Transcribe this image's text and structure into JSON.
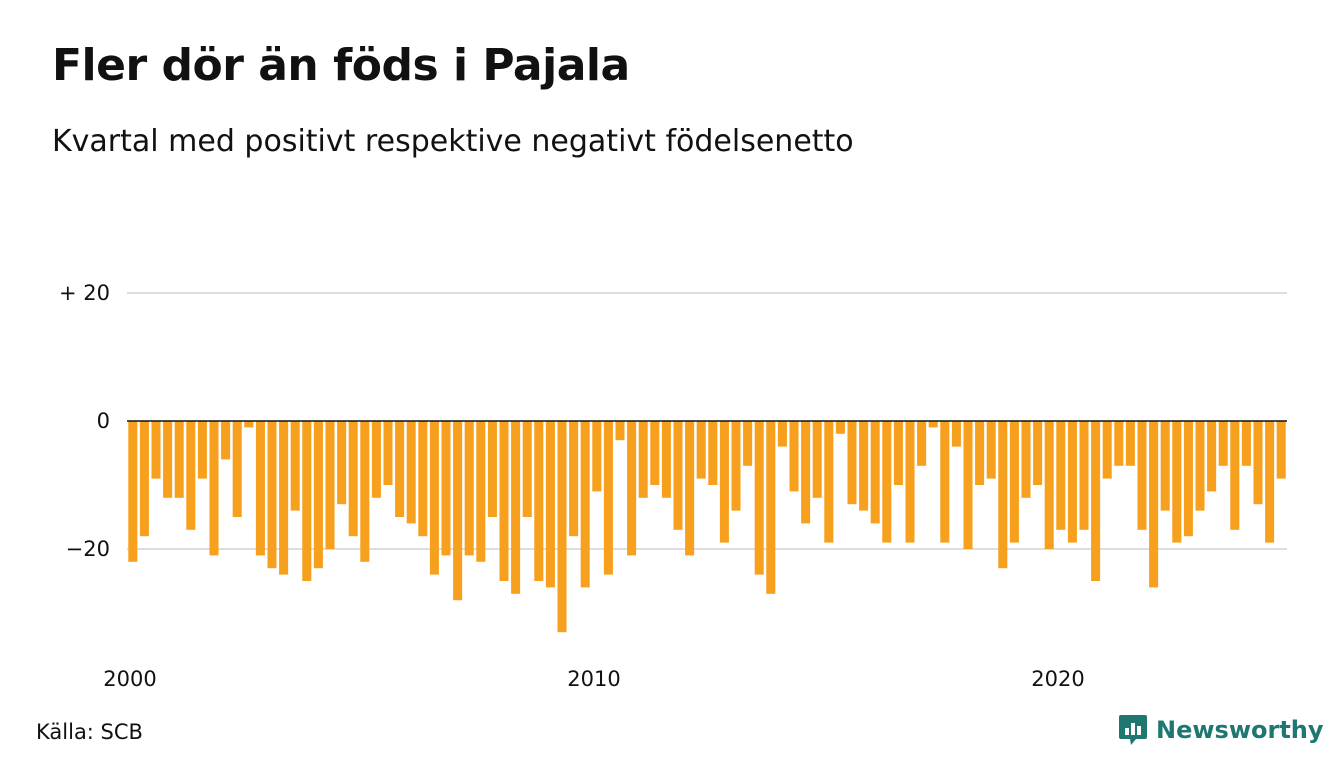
{
  "title": "Fler dör än föds i Pajala",
  "subtitle": "Kvartal med positivt respektive negativt födelsenetto",
  "source": "Källa: SCB",
  "brand": "Newsworthy",
  "colors": {
    "bar": "#f7a01e",
    "grid": "#dddddd",
    "zero_line": "#111111",
    "brand": "#1e7770"
  },
  "chart_data": {
    "type": "bar",
    "title": "Fler dör än föds i Pajala",
    "subtitle": "Kvartal med positivt respektive negativt födelsenetto",
    "xlabel": "",
    "ylabel": "",
    "ylim": [
      -33,
      30
    ],
    "grid": true,
    "y_ticks": [
      {
        "value": 20,
        "label": "+ 20"
      },
      {
        "value": 0,
        "label": "0"
      },
      {
        "value": -20,
        "label": "−20"
      }
    ],
    "x_ticks": [
      {
        "index": 0,
        "label": "2000"
      },
      {
        "index": 40,
        "label": "2010"
      },
      {
        "index": 80,
        "label": "2020"
      }
    ],
    "start": "2000 K1",
    "frequency": "quarter",
    "values": [
      -22,
      -18,
      -9,
      -12,
      -12,
      -17,
      -9,
      -21,
      -6,
      -15,
      -1,
      -21,
      -23,
      -24,
      -14,
      -25,
      -23,
      -20,
      -13,
      -18,
      -22,
      -12,
      -10,
      -15,
      -16,
      -18,
      -24,
      -21,
      -28,
      -21,
      -22,
      -15,
      -25,
      -27,
      -15,
      -25,
      -26,
      -33,
      -18,
      -26,
      -11,
      -24,
      -3,
      -21,
      -12,
      -10,
      -12,
      -17,
      -21,
      -9,
      -10,
      -19,
      -14,
      -7,
      -24,
      -27,
      -4,
      -11,
      -16,
      -12,
      -19,
      -2,
      -13,
      -14,
      -16,
      -19,
      -10,
      -19,
      -7,
      -1,
      -19,
      -4,
      -20,
      -10,
      -9,
      -23,
      -19,
      -12,
      -10,
      -20,
      -17,
      -19,
      -17,
      -25,
      -9,
      -7,
      -7,
      -17,
      -26,
      -14,
      -19,
      -18,
      -14,
      -11,
      -7,
      -17,
      -7,
      -13,
      -19,
      -9
    ]
  }
}
